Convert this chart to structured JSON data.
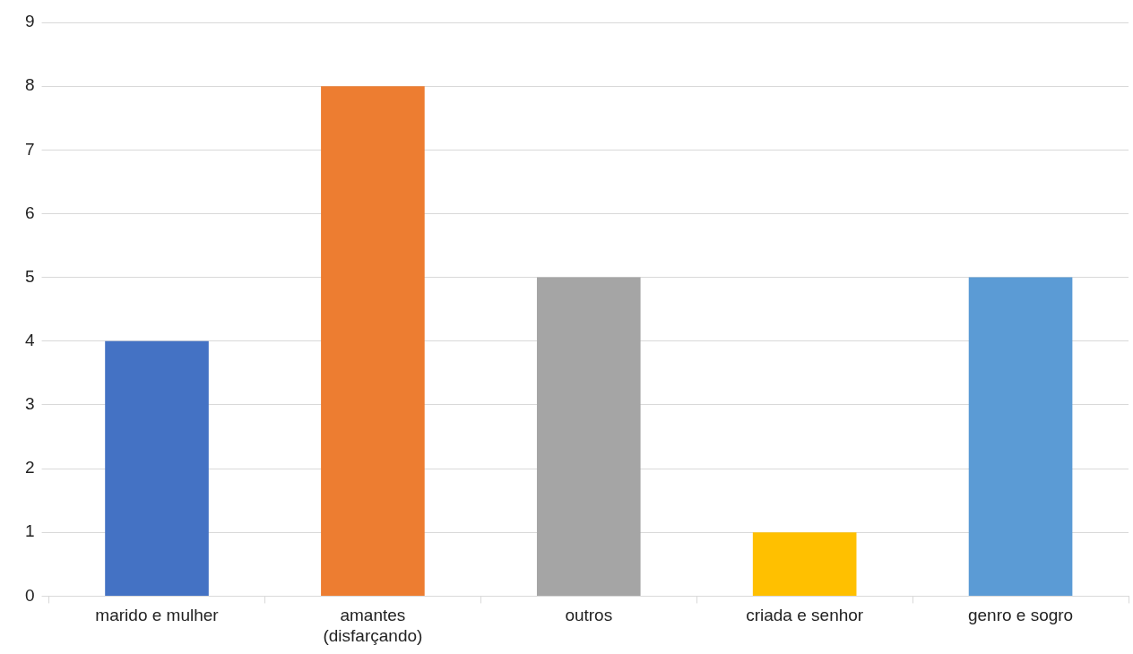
{
  "chart_data": {
    "type": "bar",
    "categories": [
      "marido e mulher",
      "amantes\n(disfarçando)",
      "outros",
      "criada e senhor",
      "genro e sogro"
    ],
    "values": [
      4,
      8,
      5,
      1,
      5
    ],
    "colors": [
      "#4472c4",
      "#ed7d31",
      "#a5a5a5",
      "#ffc000",
      "#5b9bd5"
    ],
    "ylim": [
      0,
      9
    ],
    "yticks": [
      0,
      1,
      2,
      3,
      4,
      5,
      6,
      7,
      8,
      9
    ],
    "grid": "y",
    "legend": false
  }
}
